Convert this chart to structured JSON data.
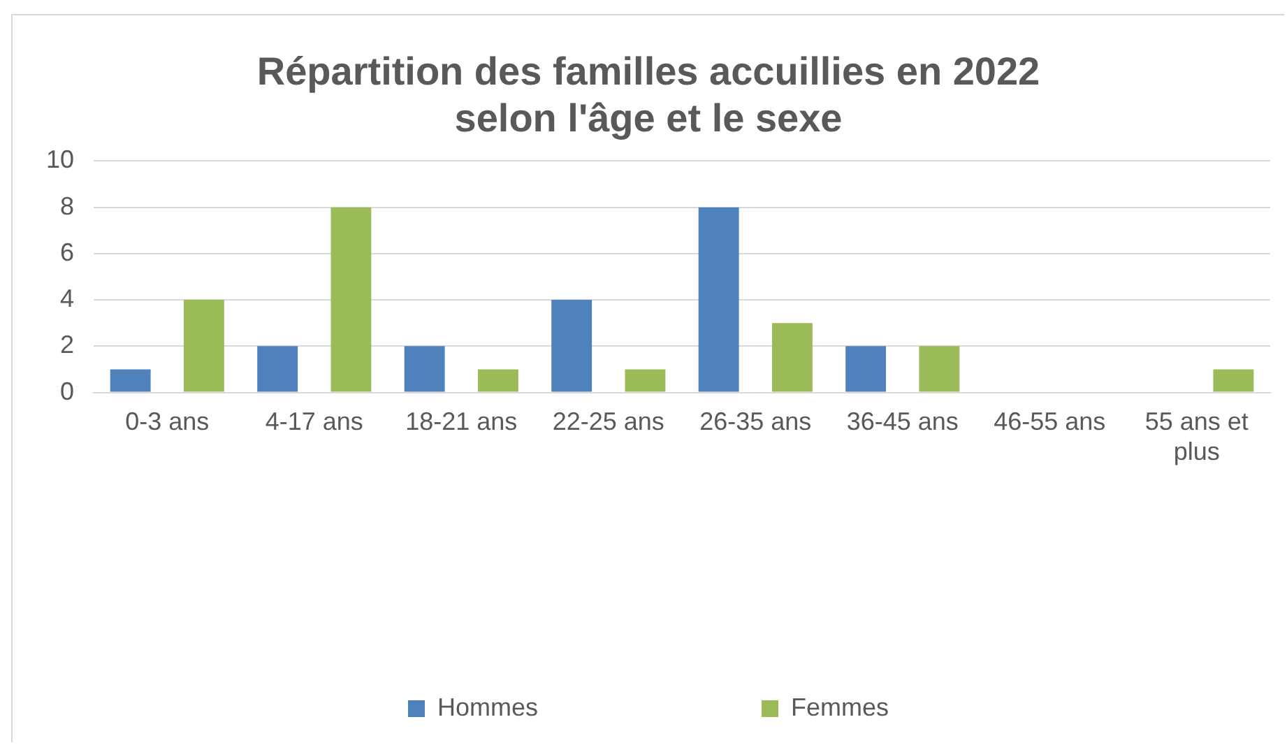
{
  "chart_data": {
    "type": "bar",
    "title": "Répartition des familles accuillies en 2022\nselon l'âge et le sexe",
    "categories": [
      "0-3 ans",
      "4-17 ans",
      "18-21 ans",
      "22-25 ans",
      "26-35 ans",
      "36-45 ans",
      "46-55 ans",
      "55 ans et plus"
    ],
    "series": [
      {
        "name": "Hommes",
        "color": "#4f81bd",
        "values": [
          1,
          2,
          2,
          4,
          8,
          2,
          0,
          0
        ]
      },
      {
        "name": "Femmes",
        "color": "#9bbb59",
        "values": [
          4,
          8,
          1,
          1,
          3,
          2,
          0,
          1
        ]
      }
    ],
    "ylim": [
      0,
      10
    ],
    "yticks": [
      0,
      2,
      4,
      6,
      8,
      10
    ],
    "grid": "y",
    "legend": "bottom"
  }
}
